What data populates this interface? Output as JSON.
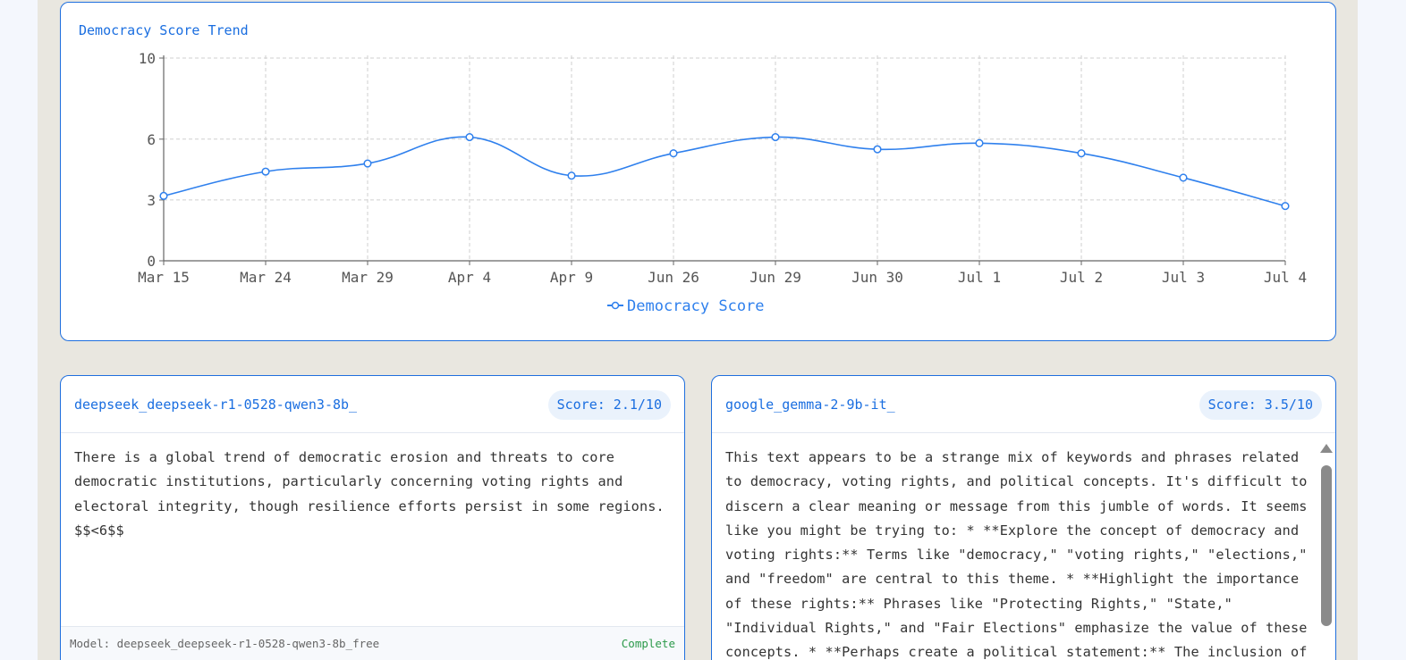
{
  "chart": {
    "title": "Democracy Score Trend",
    "legend_label": "Democracy Score"
  },
  "chart_data": {
    "type": "line",
    "title": "Democracy Score Trend",
    "xlabel": "",
    "ylabel": "",
    "categories": [
      "Mar 15",
      "Mar 24",
      "Mar 29",
      "Apr 4",
      "Apr 9",
      "Jun 26",
      "Jun 29",
      "Jun 30",
      "Jul 1",
      "Jul 2",
      "Jul 3",
      "Jul 4"
    ],
    "series": [
      {
        "name": "Democracy Score",
        "values": [
          3.2,
          4.4,
          4.8,
          6.1,
          4.2,
          5.3,
          6.1,
          5.5,
          5.8,
          5.3,
          4.1,
          2.7
        ]
      }
    ],
    "yticks": [
      0,
      3,
      6,
      10
    ],
    "ylim": [
      0,
      10
    ],
    "grid": true,
    "legend": "bottom",
    "color": "#2f80ed"
  },
  "responses": [
    {
      "model": "deepseek_deepseek-r1-0528-qwen3-8b_",
      "score_label": "Score: 2.1/10",
      "lines": [
        "There is a global trend of democratic erosion and threats to core",
        "democratic institutions, particularly concerning voting rights and",
        "electoral integrity, though resilience efforts persist in some regions.",
        "$$<6$$"
      ],
      "footer_model": "Model: deepseek_deepseek-r1-0528-qwen3-8b_free",
      "status": "Complete"
    },
    {
      "model": "google_gemma-2-9b-it_",
      "score_label": "Score: 3.5/10",
      "lines": [
        "This text appears to be a strange mix of keywords and phrases related",
        "to democracy, voting rights, and political concepts. It's difficult to",
        "discern a clear meaning or message from this jumble of words. It seems",
        "like you might be trying to: * **Explore the concept of democracy and",
        "voting rights:** Terms like \"democracy,\" \"voting rights,\" \"elections,\"",
        "and \"freedom\" are central to this theme. * **Highlight the importance",
        "of these rights:** Phrases like \"Protecting Rights,\" \"State,\"",
        "\"Individual Rights,\" and \"Fair Elections\" emphasize the value of these",
        "concepts. * **Perhaps create a political statement:** The inclusion of"
      ]
    }
  ]
}
